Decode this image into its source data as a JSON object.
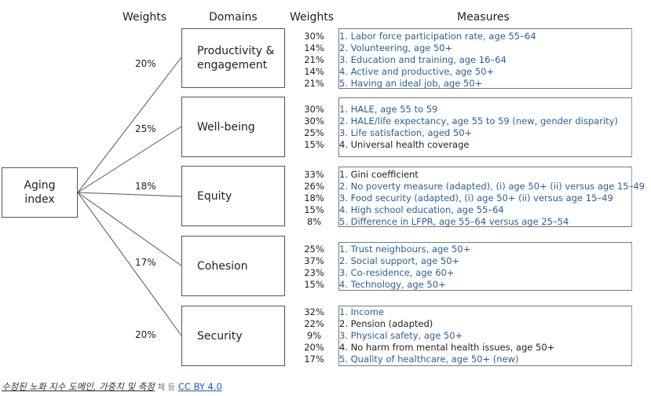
{
  "headers": {
    "weights_left": "Weights",
    "domains": "Domains",
    "weights_right": "Weights",
    "measures": "Measures"
  },
  "aging": {
    "line1": "Aging",
    "line2": "index"
  },
  "domains": [
    {
      "weight": "20%",
      "line1": "Productivity &",
      "line2": "engagement",
      "measures": [
        {
          "w": "30%",
          "text": "1. Labor force participation rate, age 55–64",
          "color": "#2b5f9a"
        },
        {
          "w": "14%",
          "text": "2. Volunteering, age 50+",
          "color": "#2b5f9a"
        },
        {
          "w": "21%",
          "text": "3. Education and training, age 16–64",
          "color": "#2b5f9a"
        },
        {
          "w": "14%",
          "text": "4. Active and productive, age 50+",
          "color": "#2b5f9a"
        },
        {
          "w": "21%",
          "text": "5. Having an ideal job, age 50+",
          "color": "#2b5f9a"
        }
      ]
    },
    {
      "weight": "25%",
      "line1": "Well-being",
      "line2": "",
      "measures": [
        {
          "w": "30%",
          "text": "1. HALE, age 55 to 59",
          "color": "#2b5f9a"
        },
        {
          "w": "30%",
          "text": "2. HALE/life expectancy, age 55 to 59 (new, gender disparity)",
          "color": "#2b5f9a"
        },
        {
          "w": "25%",
          "text": "3. Life satisfaction, aged 50+",
          "color": "#2b5f9a"
        },
        {
          "w": "15%",
          "text": "4. Universal health coverage",
          "color": "#222222"
        }
      ]
    },
    {
      "weight": "18%",
      "line1": "Equity",
      "line2": "",
      "measures": [
        {
          "w": "33%",
          "text": "1. Gini coefficient",
          "color": "#222222"
        },
        {
          "w": "26%",
          "text": "2. No poverty measure (adapted), (i) age 50+ (ii) versus age 15–49",
          "color": "#2b5f9a"
        },
        {
          "w": "18%",
          "text": "3. Food security (adapted), (i) age 50+ (ii) versus age 15–49",
          "color": "#2b5f9a"
        },
        {
          "w": "15%",
          "text": "4. High school education, age 55–64",
          "color": "#2b5f9a"
        },
        {
          "w": "8%",
          "text": "5. Difference in LFPR, age 55–64 versus age 25–54",
          "color": "#2b5f9a"
        }
      ]
    },
    {
      "weight": "17%",
      "line1": "Cohesion",
      "line2": "",
      "measures": [
        {
          "w": "25%",
          "text": "1. Trust neighbours, age 50+",
          "color": "#2b5f9a"
        },
        {
          "w": "37%",
          "text": "2. Social support, age 50+",
          "color": "#2b5f9a"
        },
        {
          "w": "23%",
          "text": "3. Co-residence, age 60+",
          "color": "#2b5f9a"
        },
        {
          "w": "15%",
          "text": "4. Technology, age 50+",
          "color": "#2b5f9a"
        }
      ]
    },
    {
      "weight": "20%",
      "line1": "Security",
      "line2": "",
      "measures": [
        {
          "w": "32%",
          "text": "1. Income",
          "color": "#2b5f9a"
        },
        {
          "w": "22%",
          "text": "2. Pension (adapted)",
          "color": "#222222"
        },
        {
          "w": "9%",
          "text": "3. Physical safety, age 50+",
          "color": "#2b5f9a"
        },
        {
          "w": "20%",
          "text": "4. No harm from mental health issues, age 50+",
          "color": "#222222"
        },
        {
          "w": "17%",
          "text": "5. Quality of healthcare, age 50+ (new)",
          "color": "#2b5f9a"
        }
      ]
    }
  ],
  "caption": {
    "title": "수정된 노화 지수 도메인, 가중치 및 측정",
    "by": "체 등",
    "license": "CC BY 4.0"
  }
}
